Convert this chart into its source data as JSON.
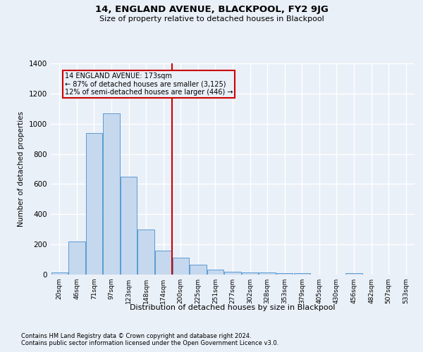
{
  "title": "14, ENGLAND AVENUE, BLACKPOOL, FY2 9JG",
  "subtitle": "Size of property relative to detached houses in Blackpool",
  "xlabel": "Distribution of detached houses by size in Blackpool",
  "ylabel": "Number of detached properties",
  "footnote1": "Contains HM Land Registry data © Crown copyright and database right 2024.",
  "footnote2": "Contains public sector information licensed under the Open Government Licence v3.0.",
  "bar_labels": [
    "20sqm",
    "46sqm",
    "71sqm",
    "97sqm",
    "123sqm",
    "148sqm",
    "174sqm",
    "200sqm",
    "225sqm",
    "251sqm",
    "277sqm",
    "302sqm",
    "328sqm",
    "353sqm",
    "379sqm",
    "405sqm",
    "430sqm",
    "456sqm",
    "482sqm",
    "507sqm",
    "533sqm"
  ],
  "bar_values": [
    15,
    220,
    940,
    1070,
    650,
    300,
    160,
    110,
    65,
    35,
    20,
    15,
    12,
    10,
    10,
    0,
    0,
    10,
    0,
    0,
    0
  ],
  "bar_color": "#c5d8ed",
  "bar_edge_color": "#5b9bd5",
  "ylim": [
    0,
    1400
  ],
  "yticks": [
    0,
    200,
    400,
    600,
    800,
    1000,
    1200,
    1400
  ],
  "property_line_x": 6.5,
  "annotation_line1": "14 ENGLAND AVENUE: 173sqm",
  "annotation_line2": "← 87% of detached houses are smaller (3,125)",
  "annotation_line3": "12% of semi-detached houses are larger (446) →",
  "vline_color": "#cc0000",
  "background_color": "#eaf0f8",
  "grid_color": "#ffffff"
}
